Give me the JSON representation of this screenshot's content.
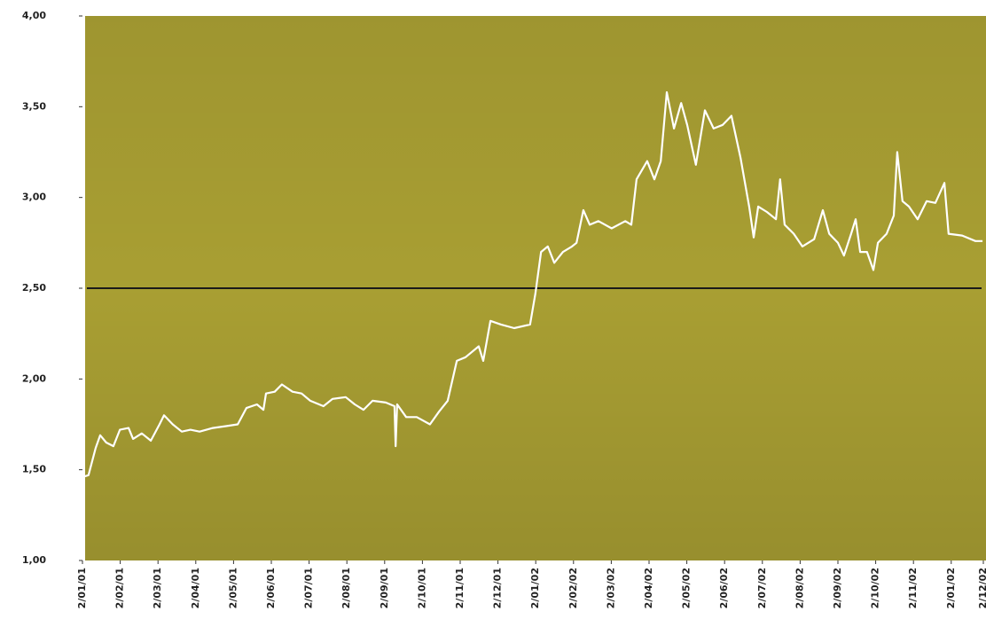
{
  "chart_data": {
    "type": "line",
    "xlim": [
      0,
      23.85
    ],
    "xticks": [
      {
        "value": 0,
        "label": "2/01/01"
      },
      {
        "value": 1,
        "label": "2/02/01"
      },
      {
        "value": 2,
        "label": "2/03/01"
      },
      {
        "value": 3,
        "label": "2/04/01"
      },
      {
        "value": 4,
        "label": "2/05/01"
      },
      {
        "value": 5,
        "label": "2/06/01"
      },
      {
        "value": 6,
        "label": "2/07/01"
      },
      {
        "value": 7,
        "label": "2/08/01"
      },
      {
        "value": 8,
        "label": "2/09/01"
      },
      {
        "value": 9,
        "label": "2/10/01"
      },
      {
        "value": 10,
        "label": "2/11/01"
      },
      {
        "value": 11,
        "label": "2/12/01"
      },
      {
        "value": 12,
        "label": "2/01/02"
      },
      {
        "value": 13,
        "label": "2/02/02"
      },
      {
        "value": 14,
        "label": "2/03/02"
      },
      {
        "value": 15,
        "label": "2/04/02"
      },
      {
        "value": 16,
        "label": "2/05/02"
      },
      {
        "value": 17,
        "label": "2/06/02"
      },
      {
        "value": 18,
        "label": "2/07/02"
      },
      {
        "value": 19,
        "label": "2/08/02"
      },
      {
        "value": 20,
        "label": "2/09/02"
      },
      {
        "value": 21,
        "label": "2/10/02"
      },
      {
        "value": 22,
        "label": "2/11/02"
      },
      {
        "value": 23,
        "label": "2/01/02"
      },
      {
        "value": 23.85,
        "label": "2/12/02"
      }
    ],
    "ylim": [
      1,
      4
    ],
    "yticks": [
      {
        "value": 1,
        "label": "1,00"
      },
      {
        "value": 1.5,
        "label": "1,50"
      },
      {
        "value": 2,
        "label": "2,00"
      },
      {
        "value": 2.5,
        "label": "2,50"
      },
      {
        "value": 3,
        "label": "3,00"
      },
      {
        "value": 3.5,
        "label": "3,50"
      },
      {
        "value": 4,
        "label": "4,00"
      }
    ],
    "reference_line": 2.5,
    "reference_color": "#1a1a1a",
    "background_color": "#aca234",
    "series": [
      {
        "color": "#ffffff",
        "x": [
          0,
          0.16,
          0.35,
          0.47,
          0.63,
          0.82,
          0.99,
          1.22,
          1.34,
          1.57,
          1.81,
          2.04,
          2.16,
          2.39,
          2.63,
          2.86,
          3.1,
          3.45,
          3.8,
          4.11,
          4.34,
          4.62,
          4.79,
          4.86,
          5.09,
          5.28,
          5.56,
          5.8,
          6.03,
          6.38,
          6.62,
          6.97,
          7.21,
          7.44,
          7.68,
          8.03,
          8.26,
          8.29,
          8.33,
          8.57,
          8.85,
          9.2,
          9.44,
          9.67,
          9.91,
          10.14,
          10.49,
          10.61,
          10.8,
          11.08,
          11.43,
          11.85,
          11.99,
          12.14,
          12.32,
          12.49,
          12.72,
          12.96,
          13.08,
          13.26,
          13.43,
          13.66,
          14.01,
          14.37,
          14.53,
          14.67,
          14.95,
          15.14,
          15.31,
          15.47,
          15.66,
          15.85,
          16.01,
          16.24,
          16.48,
          16.71,
          16.95,
          17.18,
          17.42,
          17.65,
          17.77,
          17.89,
          18.12,
          18.36,
          18.47,
          18.59,
          18.83,
          19.06,
          19.37,
          19.6,
          19.77,
          20.0,
          20.16,
          20.35,
          20.47,
          20.59,
          20.77,
          20.94,
          21.06,
          21.29,
          21.48,
          21.57,
          21.71,
          21.88,
          22.11,
          22.35,
          22.58,
          22.82,
          22.93,
          23.29,
          23.64,
          23.83
        ],
        "values": [
          1.46,
          1.47,
          1.62,
          1.69,
          1.65,
          1.63,
          1.72,
          1.73,
          1.67,
          1.7,
          1.66,
          1.75,
          1.8,
          1.75,
          1.71,
          1.72,
          1.71,
          1.73,
          1.74,
          1.75,
          1.84,
          1.86,
          1.83,
          1.92,
          1.93,
          1.97,
          1.93,
          1.92,
          1.88,
          1.85,
          1.89,
          1.9,
          1.86,
          1.83,
          1.88,
          1.87,
          1.85,
          1.63,
          1.86,
          1.79,
          1.79,
          1.75,
          1.82,
          1.88,
          2.1,
          2.12,
          2.18,
          2.1,
          2.32,
          2.3,
          2.28,
          2.3,
          2.47,
          2.7,
          2.73,
          2.64,
          2.7,
          2.73,
          2.75,
          2.93,
          2.85,
          2.87,
          2.83,
          2.87,
          2.85,
          3.1,
          3.2,
          3.1,
          3.2,
          3.58,
          3.38,
          3.52,
          3.4,
          3.18,
          3.48,
          3.38,
          3.4,
          3.45,
          3.22,
          2.95,
          2.78,
          2.95,
          2.92,
          2.88,
          3.1,
          2.85,
          2.8,
          2.73,
          2.77,
          2.93,
          2.8,
          2.75,
          2.68,
          2.8,
          2.88,
          2.7,
          2.7,
          2.6,
          2.75,
          2.8,
          2.9,
          3.25,
          2.98,
          2.95,
          2.88,
          2.98,
          2.97,
          3.08,
          2.8,
          2.79,
          2.76,
          2.76
        ]
      }
    ]
  }
}
